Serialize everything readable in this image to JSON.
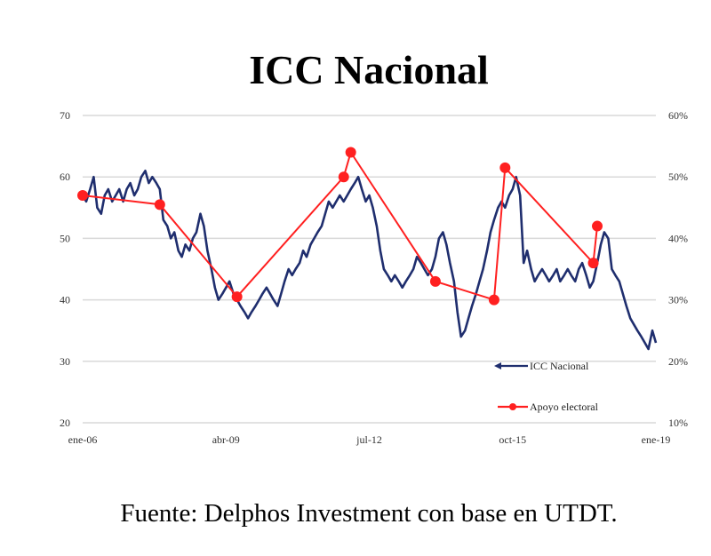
{
  "chart_data": {
    "type": "line",
    "title": "ICC Nacional",
    "source": "Fuente: Delphos Investment con base en UTDT.",
    "x_range": [
      2006.0,
      2019.0
    ],
    "x_ticks": [
      {
        "x": 2006.0,
        "label": "ene-06"
      },
      {
        "x": 2009.25,
        "label": "abr-09"
      },
      {
        "x": 2012.5,
        "label": "jul-12"
      },
      {
        "x": 2015.75,
        "label": "oct-15"
      },
      {
        "x": 2019.0,
        "label": "ene-19"
      }
    ],
    "y_left": {
      "ylim": [
        20,
        70
      ],
      "ticks": [
        "20",
        "30",
        "40",
        "50",
        "60",
        "70"
      ]
    },
    "y_right": {
      "ylim": [
        10,
        60
      ],
      "ticks": [
        "10%",
        "20%",
        "30%",
        "40%",
        "50%",
        "60%"
      ]
    },
    "grid": true,
    "legend_position": "bottom-right",
    "series": [
      {
        "name": "ICC Nacional",
        "axis": "left",
        "color": "#1f2e6e",
        "points": [
          [
            2006.0,
            57
          ],
          [
            2006.08,
            56
          ],
          [
            2006.17,
            58
          ],
          [
            2006.25,
            60
          ],
          [
            2006.33,
            55
          ],
          [
            2006.42,
            54
          ],
          [
            2006.5,
            57
          ],
          [
            2006.58,
            58
          ],
          [
            2006.67,
            56
          ],
          [
            2006.75,
            57
          ],
          [
            2006.83,
            58
          ],
          [
            2006.92,
            56
          ],
          [
            2007.0,
            58
          ],
          [
            2007.08,
            59
          ],
          [
            2007.17,
            57
          ],
          [
            2007.25,
            58
          ],
          [
            2007.33,
            60
          ],
          [
            2007.42,
            61
          ],
          [
            2007.5,
            59
          ],
          [
            2007.58,
            60
          ],
          [
            2007.67,
            59
          ],
          [
            2007.75,
            58
          ],
          [
            2007.83,
            53
          ],
          [
            2007.92,
            52
          ],
          [
            2008.0,
            50
          ],
          [
            2008.08,
            51
          ],
          [
            2008.17,
            48
          ],
          [
            2008.25,
            47
          ],
          [
            2008.33,
            49
          ],
          [
            2008.42,
            48
          ],
          [
            2008.5,
            50
          ],
          [
            2008.58,
            51
          ],
          [
            2008.67,
            54
          ],
          [
            2008.75,
            52
          ],
          [
            2008.83,
            48
          ],
          [
            2008.92,
            45
          ],
          [
            2009.0,
            42
          ],
          [
            2009.08,
            40
          ],
          [
            2009.17,
            41
          ],
          [
            2009.25,
            42
          ],
          [
            2009.33,
            43
          ],
          [
            2009.42,
            41
          ],
          [
            2009.5,
            40
          ],
          [
            2009.58,
            39
          ],
          [
            2009.67,
            38
          ],
          [
            2009.75,
            37
          ],
          [
            2009.83,
            38
          ],
          [
            2009.92,
            39
          ],
          [
            2010.0,
            40
          ],
          [
            2010.08,
            41
          ],
          [
            2010.17,
            42
          ],
          [
            2010.25,
            41
          ],
          [
            2010.33,
            40
          ],
          [
            2010.42,
            39
          ],
          [
            2010.5,
            41
          ],
          [
            2010.58,
            43
          ],
          [
            2010.67,
            45
          ],
          [
            2010.75,
            44
          ],
          [
            2010.83,
            45
          ],
          [
            2010.92,
            46
          ],
          [
            2011.0,
            48
          ],
          [
            2011.08,
            47
          ],
          [
            2011.17,
            49
          ],
          [
            2011.25,
            50
          ],
          [
            2011.33,
            51
          ],
          [
            2011.42,
            52
          ],
          [
            2011.5,
            54
          ],
          [
            2011.58,
            56
          ],
          [
            2011.67,
            55
          ],
          [
            2011.75,
            56
          ],
          [
            2011.83,
            57
          ],
          [
            2011.92,
            56
          ],
          [
            2012.0,
            57
          ],
          [
            2012.08,
            58
          ],
          [
            2012.17,
            59
          ],
          [
            2012.25,
            60
          ],
          [
            2012.33,
            58
          ],
          [
            2012.42,
            56
          ],
          [
            2012.5,
            57
          ],
          [
            2012.58,
            55
          ],
          [
            2012.67,
            52
          ],
          [
            2012.75,
            48
          ],
          [
            2012.83,
            45
          ],
          [
            2012.92,
            44
          ],
          [
            2013.0,
            43
          ],
          [
            2013.08,
            44
          ],
          [
            2013.17,
            43
          ],
          [
            2013.25,
            42
          ],
          [
            2013.33,
            43
          ],
          [
            2013.42,
            44
          ],
          [
            2013.5,
            45
          ],
          [
            2013.58,
            47
          ],
          [
            2013.67,
            46
          ],
          [
            2013.75,
            45
          ],
          [
            2013.83,
            44
          ],
          [
            2013.92,
            45
          ],
          [
            2014.0,
            47
          ],
          [
            2014.08,
            50
          ],
          [
            2014.17,
            51
          ],
          [
            2014.25,
            49
          ],
          [
            2014.33,
            46
          ],
          [
            2014.42,
            43
          ],
          [
            2014.5,
            38
          ],
          [
            2014.58,
            34
          ],
          [
            2014.67,
            35
          ],
          [
            2014.75,
            37
          ],
          [
            2014.83,
            39
          ],
          [
            2014.92,
            41
          ],
          [
            2015.0,
            43
          ],
          [
            2015.08,
            45
          ],
          [
            2015.17,
            48
          ],
          [
            2015.25,
            51
          ],
          [
            2015.33,
            53
          ],
          [
            2015.42,
            55
          ],
          [
            2015.5,
            56
          ],
          [
            2015.58,
            55
          ],
          [
            2015.67,
            57
          ],
          [
            2015.75,
            58
          ],
          [
            2015.83,
            60
          ],
          [
            2015.92,
            57
          ],
          [
            2016.0,
            46
          ],
          [
            2016.08,
            48
          ],
          [
            2016.17,
            45
          ],
          [
            2016.25,
            43
          ],
          [
            2016.33,
            44
          ],
          [
            2016.42,
            45
          ],
          [
            2016.5,
            44
          ],
          [
            2016.58,
            43
          ],
          [
            2016.67,
            44
          ],
          [
            2016.75,
            45
          ],
          [
            2016.83,
            43
          ],
          [
            2016.92,
            44
          ],
          [
            2017.0,
            45
          ],
          [
            2017.08,
            44
          ],
          [
            2017.17,
            43
          ],
          [
            2017.25,
            45
          ],
          [
            2017.33,
            46
          ],
          [
            2017.42,
            44
          ],
          [
            2017.5,
            42
          ],
          [
            2017.58,
            43
          ],
          [
            2017.67,
            46
          ],
          [
            2017.75,
            49
          ],
          [
            2017.83,
            51
          ],
          [
            2017.92,
            50
          ],
          [
            2018.0,
            45
          ],
          [
            2018.08,
            44
          ],
          [
            2018.17,
            43
          ],
          [
            2018.25,
            41
          ],
          [
            2018.33,
            39
          ],
          [
            2018.42,
            37
          ],
          [
            2018.5,
            36
          ],
          [
            2018.58,
            35
          ],
          [
            2018.67,
            34
          ],
          [
            2018.75,
            33
          ],
          [
            2018.83,
            32
          ],
          [
            2018.92,
            35
          ],
          [
            2019.0,
            33
          ]
        ]
      },
      {
        "name": "Apoyo electoral",
        "axis": "right",
        "color": "#ff2020",
        "points": [
          [
            2006.0,
            47
          ],
          [
            2007.75,
            45.5
          ],
          [
            2009.5,
            30.5
          ],
          [
            2011.92,
            50
          ],
          [
            2012.08,
            54
          ],
          [
            2014.0,
            33
          ],
          [
            2015.33,
            30
          ],
          [
            2015.58,
            51.5
          ],
          [
            2017.58,
            36
          ],
          [
            2017.67,
            42
          ]
        ]
      }
    ]
  }
}
